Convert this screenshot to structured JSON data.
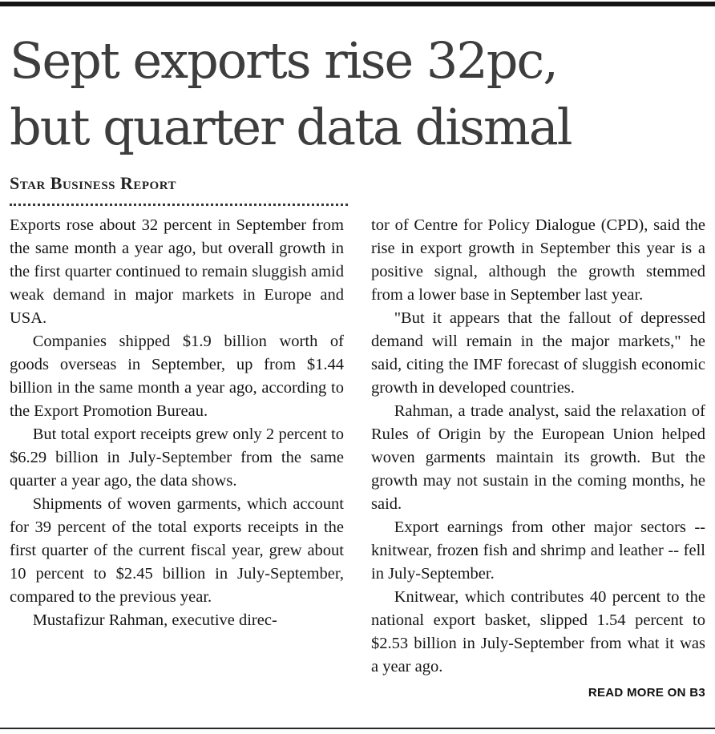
{
  "article": {
    "headline": [
      "Sept exports rise 32pc,",
      "but quarter data dismal"
    ],
    "byline": "Star Business Report",
    "columns": {
      "left": [
        "Exports rose about 32 percent in September from the same month a year ago, but overall growth in the first quarter continued to remain sluggish amid weak demand in major markets in Europe and USA.",
        "Companies shipped $1.9 billion worth of goods overseas in September, up from $1.44 billion in the same month a year ago, according to the Export Promotion Bureau.",
        "But total export receipts grew only 2 percent to $6.29 billion in July-September from the same quarter a year ago, the data shows.",
        "Shipments of woven garments, which account for 39 percent of the total exports receipts in the first quarter of the current fiscal year, grew about 10 percent to $2.45 billion in July-September, compared to the previous year.",
        "Mustafizur Rahman, executive direc-"
      ],
      "right": [
        "tor of Centre for Policy Dialogue (CPD), said the rise in export growth in September this year is a positive signal, although the growth stemmed from a lower base in September last year.",
        "\"But it appears that the fallout of depressed demand will remain in the major markets,\" he said, citing the IMF forecast of sluggish economic growth in developed countries.",
        "Rahman, a trade analyst, said the relaxation of Rules of Origin by the European Union helped woven garments maintain its growth. But the growth may not sustain in the coming months, he said.",
        "Export earnings from other major sectors -- knitwear, frozen fish and shrimp and leather -- fell in July-September.",
        "Knitwear, which contributes 40 percent to the national export basket, slipped 1.54 percent to $2.53 billion in July-September from what it was a year ago."
      ]
    },
    "read_more": "READ MORE ON B3"
  }
}
